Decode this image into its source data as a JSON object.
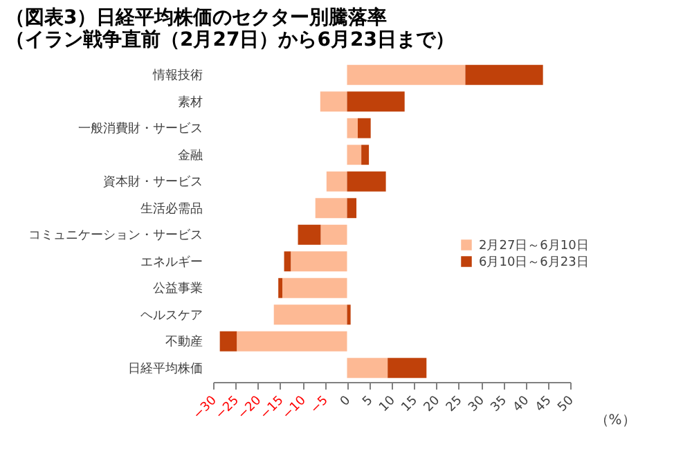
{
  "chart_data": {
    "type": "bar",
    "orientation": "horizontal",
    "stacked": true,
    "title": [
      "（図表3）日経平均株価のセクター別騰落率",
      "（イラン戦争直前（2月27日）から6月23日まで）"
    ],
    "xlabel": "（%）",
    "categories": [
      "情報技術",
      "素材",
      "一般消費財・サービス",
      "金融",
      "資本財・サービス",
      "生活必需品",
      "コミュニケーション・サービス",
      "エネルギー",
      "公益事業",
      "ヘルスケア",
      "不動産",
      "日経平均株価"
    ],
    "series": [
      {
        "name": "2月27日～6月10日",
        "color": "#fdb994",
        "values": [
          26.5,
          -6.0,
          2.4,
          3.2,
          -4.6,
          -7.1,
          -5.9,
          -12.6,
          -14.5,
          -16.4,
          -24.7,
          9.1
        ]
      },
      {
        "name": "6月10日～6月23日",
        "color": "#c0410a",
        "values": [
          17.4,
          12.9,
          2.9,
          1.7,
          8.7,
          2.1,
          -5.1,
          -1.5,
          -0.9,
          0.8,
          -3.8,
          8.7
        ]
      }
    ],
    "xlim": [
      -30,
      50
    ],
    "xticks": [
      -30,
      -25,
      -20,
      -15,
      -10,
      -5,
      0,
      5,
      10,
      15,
      20,
      25,
      30,
      35,
      40,
      45,
      50
    ],
    "grid": false,
    "legend": "right"
  }
}
